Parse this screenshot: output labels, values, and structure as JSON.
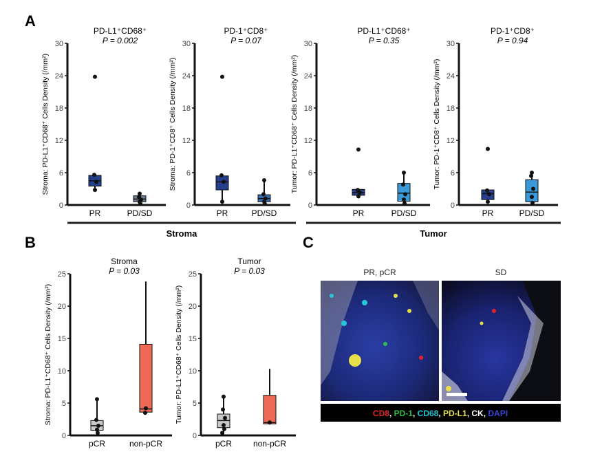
{
  "panel_labels": {
    "a": "A",
    "b": "B",
    "c": "C"
  },
  "groups": {
    "stroma": "Stroma",
    "tumor": "Tumor"
  },
  "panel_c": {
    "left_title": "PR, pCR",
    "right_title": "SD",
    "legend": [
      {
        "text": "CD8",
        "color": "#e8212b"
      },
      {
        "text": ", ",
        "color": "#ffffff"
      },
      {
        "text": "PD-1",
        "color": "#2fbf4a"
      },
      {
        "text": ", ",
        "color": "#ffffff"
      },
      {
        "text": "CD68",
        "color": "#27c6d6"
      },
      {
        "text": ", ",
        "color": "#ffffff"
      },
      {
        "text": "PD-L1",
        "color": "#e7e04a"
      },
      {
        "text": ", ",
        "color": "#ffffff"
      },
      {
        "text": "CK",
        "color": "#ffffff"
      },
      {
        "text": ", ",
        "color": "#ffffff"
      },
      {
        "text": "DAPI",
        "color": "#3d44d9"
      }
    ]
  },
  "chart_data": [
    {
      "type": "box",
      "title": "PD-L1⁺CD68⁺",
      "subtitle": "P = 0.002",
      "ylabel": "Stroma: PD-L1⁺CD68⁺ Cells Density (/mm²)",
      "ylim": [
        0,
        30
      ],
      "yticks": [
        0,
        6,
        12,
        18,
        24,
        30
      ],
      "categories": [
        "PR",
        "PD/SD"
      ],
      "boxes": [
        {
          "category": "PR",
          "q1": 3.5,
          "median": 4.5,
          "q3": 5.5,
          "min": 2.8,
          "max": 5.7,
          "color": "#243f8c",
          "points": [
            23.8,
            5.6,
            4.3,
            2.8
          ]
        },
        {
          "category": "PD/SD",
          "q1": 0.6,
          "median": 1.1,
          "q3": 1.7,
          "min": 0.2,
          "max": 2.2,
          "color": "#6b7f96",
          "points": [
            2.1,
            1.5,
            1.0,
            0.6,
            0.3
          ]
        }
      ]
    },
    {
      "type": "box",
      "title": "PD-1⁺CD8⁺",
      "subtitle": "P = 0.07",
      "ylabel": "Stroma: PD-1⁺CD8⁺ Cells Density (/mm²)",
      "ylim": [
        0,
        30
      ],
      "yticks": [
        0,
        6,
        12,
        18,
        24,
        30
      ],
      "categories": [
        "PR",
        "PD/SD"
      ],
      "boxes": [
        {
          "category": "PR",
          "q1": 2.8,
          "median": 4.3,
          "q3": 5.4,
          "min": 0.5,
          "max": 5.6,
          "color": "#243f8c",
          "points": [
            23.8,
            5.5,
            4.3,
            0.6
          ]
        },
        {
          "category": "PD/SD",
          "q1": 0.6,
          "median": 1.2,
          "q3": 1.9,
          "min": 0.1,
          "max": 4.6,
          "color": "#3a6fb5",
          "points": [
            4.6,
            2.0,
            1.2,
            0.6,
            0.2
          ]
        }
      ]
    },
    {
      "type": "box",
      "title": "PD-L1⁺CD68⁺",
      "subtitle": "P = 0.35",
      "ylabel": "Tumor: PD-L1⁺CD68⁺ Cells Density (/mm²)",
      "ylim": [
        0,
        30
      ],
      "yticks": [
        0,
        6,
        12,
        18,
        24,
        30
      ],
      "categories": [
        "PR",
        "PD/SD"
      ],
      "boxes": [
        {
          "category": "PR",
          "q1": 1.8,
          "median": 2.3,
          "q3": 2.9,
          "min": 1.3,
          "max": 3.0,
          "color": "#243f8c",
          "points": [
            10.3,
            2.8,
            2.3,
            1.6
          ]
        },
        {
          "category": "PD/SD",
          "q1": 0.7,
          "median": 2.2,
          "q3": 4.0,
          "min": 0.1,
          "max": 6.0,
          "color": "#3a9ad9",
          "points": [
            6.0,
            3.8,
            2.0,
            1.0,
            0.3
          ]
        }
      ]
    },
    {
      "type": "box",
      "title": "PD-1⁺CD8⁺",
      "subtitle": "P = 0.94",
      "ylabel": "Tumor: PD-1⁺CD8⁺ Cells Density (/mm²)",
      "ylim": [
        0,
        30
      ],
      "yticks": [
        0,
        6,
        12,
        18,
        24,
        30
      ],
      "categories": [
        "PR",
        "PD/SD"
      ],
      "boxes": [
        {
          "category": "PR",
          "q1": 1.0,
          "median": 2.1,
          "q3": 2.8,
          "min": 0.4,
          "max": 3.0,
          "color": "#243f8c",
          "points": [
            10.4,
            2.7,
            2.0,
            0.6
          ]
        },
        {
          "category": "PD/SD",
          "q1": 0.6,
          "median": 2.4,
          "q3": 4.7,
          "min": 0.1,
          "max": 6.1,
          "color": "#3a9ad9",
          "points": [
            6.0,
            5.4,
            3.0,
            1.5,
            0.4
          ]
        }
      ]
    },
    {
      "type": "box",
      "title": "Stroma",
      "subtitle": "P = 0.03",
      "ylabel": "Stroma: PD-L1⁺CD68⁺ Cells Density (/mm²)",
      "ylim": [
        0,
        25
      ],
      "yticks": [
        0,
        5,
        10,
        15,
        20,
        25
      ],
      "categories": [
        "pCR",
        "non-pCR"
      ],
      "boxes": [
        {
          "category": "pCR",
          "q1": 0.8,
          "median": 1.5,
          "q3": 2.3,
          "min": 0.2,
          "max": 5.6,
          "color": "#c9c9c9",
          "points": [
            5.6,
            2.4,
            1.5,
            0.9,
            0.4
          ]
        },
        {
          "category": "non-pCR",
          "q1": 3.6,
          "median": 4.1,
          "q3": 14.1,
          "min": 3.3,
          "max": 23.8,
          "color": "#ef6a56",
          "points": [
            4.2,
            3.5
          ]
        }
      ]
    },
    {
      "type": "box",
      "title": "Tumor",
      "subtitle": "P = 0.03",
      "ylabel": "Tumor: PD-L1⁺CD68⁺ Cells Density (/mm²)",
      "ylim": [
        0,
        25
      ],
      "yticks": [
        0,
        5,
        10,
        15,
        20,
        25
      ],
      "categories": [
        "pCR",
        "non-pCR"
      ],
      "boxes": [
        {
          "category": "pCR",
          "q1": 1.2,
          "median": 2.3,
          "q3": 3.3,
          "min": 0.1,
          "max": 6.0,
          "color": "#c9c9c9",
          "points": [
            6.0,
            4.0,
            2.7,
            1.6,
            1.0,
            0.4
          ]
        },
        {
          "category": "non-pCR",
          "q1": 1.8,
          "median": 2.0,
          "q3": 6.2,
          "min": 1.7,
          "max": 10.3,
          "color": "#ef6a56",
          "points": [
            2.0
          ]
        }
      ]
    }
  ]
}
